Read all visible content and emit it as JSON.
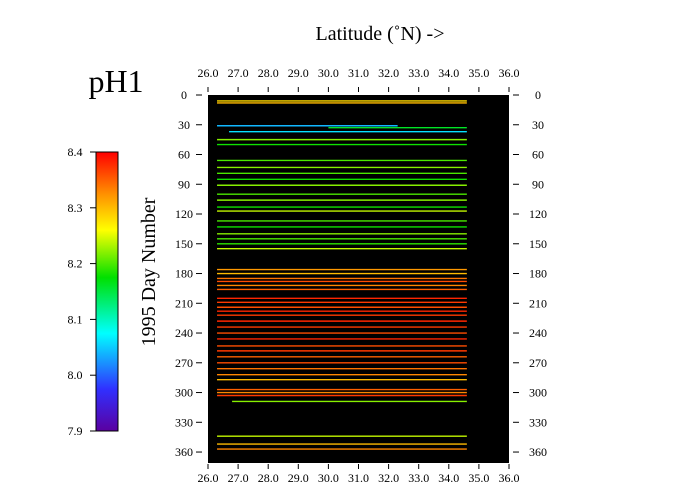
{
  "chart_data": {
    "type": "scatter",
    "title": "pH1",
    "xlabel": "Latitude (˚N) ->",
    "ylabel": "1995 Day Number",
    "xlim": [
      26.0,
      36.0
    ],
    "ylim": [
      0,
      365
    ],
    "y_reversed": true,
    "xticks": [
      "26.0",
      "27.0",
      "28.0",
      "29.0",
      "30.0",
      "31.0",
      "32.0",
      "33.0",
      "34.0",
      "35.0",
      "36.0"
    ],
    "yticks": [
      "0",
      "30",
      "60",
      "90",
      "120",
      "150",
      "180",
      "210",
      "240",
      "270",
      "300",
      "330",
      "360"
    ],
    "colorbar": {
      "min": 7.9,
      "max": 8.4,
      "ticks": [
        "8.4",
        "8.3",
        "8.2",
        "8.1",
        "8.0",
        "7.9"
      ],
      "colormap": "rainbow (violet-blue-cyan-green-yellow-orange-red)"
    },
    "plot_background": "#000000",
    "tracks": [
      {
        "day": 6,
        "lat": [
          26.3,
          34.6
        ],
        "ph": 8.28
      },
      {
        "day": 8,
        "lat": [
          26.3,
          34.6
        ],
        "ph": 8.3
      },
      {
        "day": 31,
        "lat": [
          26.3,
          32.3
        ],
        "ph": 8.04
      },
      {
        "day": 33,
        "lat": [
          30.0,
          34.6
        ],
        "ph": 8.16
      },
      {
        "day": 37,
        "lat": [
          26.7,
          34.6
        ],
        "ph": 8.06
      },
      {
        "day": 45,
        "lat": [
          26.3,
          34.6
        ],
        "ph": 8.22
      },
      {
        "day": 50,
        "lat": [
          26.3,
          34.6
        ],
        "ph": 8.18
      },
      {
        "day": 66,
        "lat": [
          26.3,
          34.6
        ],
        "ph": 8.2
      },
      {
        "day": 73,
        "lat": [
          26.3,
          34.6
        ],
        "ph": 8.22
      },
      {
        "day": 79,
        "lat": [
          26.3,
          34.6
        ],
        "ph": 8.2
      },
      {
        "day": 85,
        "lat": [
          26.3,
          34.6
        ],
        "ph": 8.18
      },
      {
        "day": 91,
        "lat": [
          26.3,
          34.6
        ],
        "ph": 8.22
      },
      {
        "day": 100,
        "lat": [
          26.3,
          34.6
        ],
        "ph": 8.2
      },
      {
        "day": 106,
        "lat": [
          26.3,
          34.6
        ],
        "ph": 8.22
      },
      {
        "day": 113,
        "lat": [
          26.3,
          34.6
        ],
        "ph": 8.18
      },
      {
        "day": 117,
        "lat": [
          26.3,
          34.6
        ],
        "ph": 8.24
      },
      {
        "day": 127,
        "lat": [
          26.3,
          34.6
        ],
        "ph": 8.2
      },
      {
        "day": 133,
        "lat": [
          26.3,
          34.6
        ],
        "ph": 8.18
      },
      {
        "day": 140,
        "lat": [
          26.3,
          34.6
        ],
        "ph": 8.22
      },
      {
        "day": 145,
        "lat": [
          26.3,
          34.6
        ],
        "ph": 8.2
      },
      {
        "day": 150,
        "lat": [
          26.3,
          34.6
        ],
        "ph": 8.19
      },
      {
        "day": 155,
        "lat": [
          26.3,
          34.6
        ],
        "ph": 8.24
      },
      {
        "day": 176,
        "lat": [
          26.3,
          34.6
        ],
        "ph": 8.32
      },
      {
        "day": 180,
        "lat": [
          26.3,
          34.6
        ],
        "ph": 8.3
      },
      {
        "day": 185,
        "lat": [
          26.3,
          34.6
        ],
        "ph": 8.34
      },
      {
        "day": 188,
        "lat": [
          26.3,
          34.6
        ],
        "ph": 8.36
      },
      {
        "day": 192,
        "lat": [
          26.3,
          34.6
        ],
        "ph": 8.33
      },
      {
        "day": 196,
        "lat": [
          26.3,
          34.6
        ],
        "ph": 8.35
      },
      {
        "day": 205,
        "lat": [
          26.3,
          34.6
        ],
        "ph": 8.38
      },
      {
        "day": 209,
        "lat": [
          26.3,
          34.6
        ],
        "ph": 8.37
      },
      {
        "day": 214,
        "lat": [
          26.3,
          34.6
        ],
        "ph": 8.36
      },
      {
        "day": 218,
        "lat": [
          26.3,
          34.6
        ],
        "ph": 8.38
      },
      {
        "day": 222,
        "lat": [
          26.3,
          34.6
        ],
        "ph": 8.37
      },
      {
        "day": 228,
        "lat": [
          26.3,
          34.6
        ],
        "ph": 8.38
      },
      {
        "day": 234,
        "lat": [
          26.3,
          34.6
        ],
        "ph": 8.37
      },
      {
        "day": 240,
        "lat": [
          26.3,
          34.6
        ],
        "ph": 8.36
      },
      {
        "day": 246,
        "lat": [
          26.3,
          34.6
        ],
        "ph": 8.38
      },
      {
        "day": 253,
        "lat": [
          26.3,
          34.6
        ],
        "ph": 8.36
      },
      {
        "day": 258,
        "lat": [
          26.3,
          34.6
        ],
        "ph": 8.37
      },
      {
        "day": 264,
        "lat": [
          26.3,
          34.6
        ],
        "ph": 8.35
      },
      {
        "day": 270,
        "lat": [
          26.3,
          34.6
        ],
        "ph": 8.36
      },
      {
        "day": 276,
        "lat": [
          26.3,
          34.6
        ],
        "ph": 8.34
      },
      {
        "day": 282,
        "lat": [
          26.3,
          34.6
        ],
        "ph": 8.33
      },
      {
        "day": 287,
        "lat": [
          26.3,
          34.6
        ],
        "ph": 8.3
      },
      {
        "day": 297,
        "lat": [
          26.3,
          34.6
        ],
        "ph": 8.35
      },
      {
        "day": 300,
        "lat": [
          26.3,
          34.6
        ],
        "ph": 8.33
      },
      {
        "day": 303,
        "lat": [
          26.3,
          34.6
        ],
        "ph": 8.37
      },
      {
        "day": 309,
        "lat": [
          26.8,
          34.6
        ],
        "ph": 8.22
      },
      {
        "day": 344,
        "lat": [
          26.3,
          34.6
        ],
        "ph": 8.24
      },
      {
        "day": 352,
        "lat": [
          26.3,
          34.6
        ],
        "ph": 8.3
      },
      {
        "day": 357,
        "lat": [
          26.3,
          34.6
        ],
        "ph": 8.33
      }
    ]
  }
}
